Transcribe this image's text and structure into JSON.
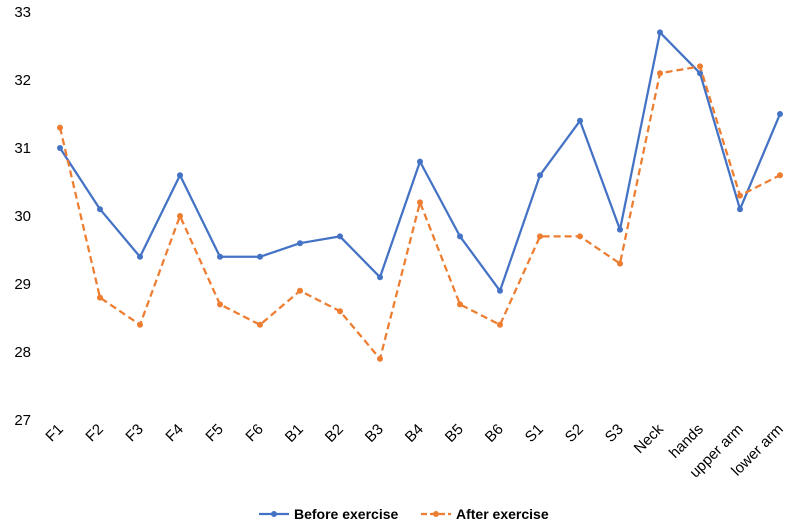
{
  "chart_data": {
    "type": "line",
    "title": "",
    "xlabel": "",
    "ylabel": "",
    "ylim": [
      27,
      33
    ],
    "y_ticks": [
      "27",
      "28",
      "29",
      "30",
      "31",
      "32",
      "33"
    ],
    "grid": false,
    "legend_position": "bottom",
    "categories": [
      "F1",
      "F2",
      "F3",
      "F4",
      "F5",
      "F6",
      "B1",
      "B2",
      "B3",
      "B4",
      "B5",
      "B6",
      "S1",
      "S2",
      "S3",
      "Neck",
      "hands",
      "upper arm",
      "lower arm"
    ],
    "series": [
      {
        "name": "Before exercise",
        "color": "#4472C4",
        "style": "solid",
        "values": [
          31.0,
          30.1,
          29.4,
          30.6,
          29.4,
          29.4,
          29.6,
          29.7,
          29.1,
          30.8,
          29.7,
          28.9,
          30.6,
          31.4,
          29.8,
          32.7,
          32.1,
          30.1,
          31.5
        ]
      },
      {
        "name": "After exercise",
        "color": "#ED7D31",
        "style": "dashed",
        "values": [
          31.3,
          28.8,
          28.4,
          30.0,
          28.7,
          28.4,
          28.9,
          28.6,
          27.9,
          30.2,
          28.7,
          28.4,
          29.7,
          29.7,
          29.3,
          32.1,
          32.2,
          30.3,
          30.6
        ]
      }
    ]
  }
}
